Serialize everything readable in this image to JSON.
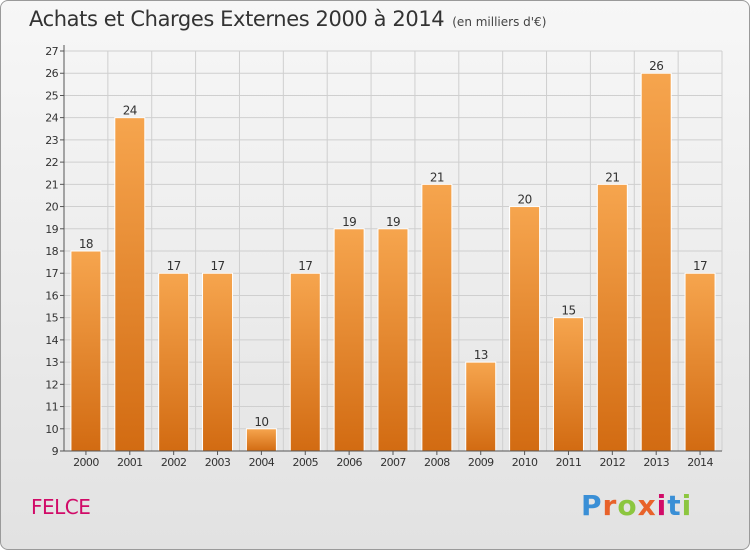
{
  "header": {
    "title": "Achats et Charges Externes 2000 à 2014",
    "subtitle": "(en milliers d'€)"
  },
  "commune": "FELCE",
  "logo": {
    "text": "Proxiti",
    "letter_colors": [
      "#3a8fd6",
      "#e8622a",
      "#8cc63f",
      "#e8622a",
      "#d10b68",
      "#3a8fd6",
      "#8cc63f"
    ]
  },
  "chart_data": {
    "type": "bar",
    "categories": [
      "2000",
      "2001",
      "2002",
      "2003",
      "2004",
      "2005",
      "2006",
      "2007",
      "2008",
      "2009",
      "2010",
      "2011",
      "2012",
      "2013",
      "2014"
    ],
    "values": [
      18,
      24,
      17,
      17,
      10,
      17,
      19,
      19,
      21,
      13,
      20,
      15,
      21,
      26,
      17
    ],
    "ylim": [
      9,
      27
    ],
    "yticks": [
      9,
      10,
      11,
      12,
      13,
      14,
      15,
      16,
      17,
      18,
      19,
      20,
      21,
      22,
      23,
      24,
      25,
      26,
      27
    ],
    "grid": true,
    "legend": "none",
    "bar_color_top": "#f6a54e",
    "bar_color_bottom": "#d26b12",
    "grid_color": "#cfcfcf"
  }
}
